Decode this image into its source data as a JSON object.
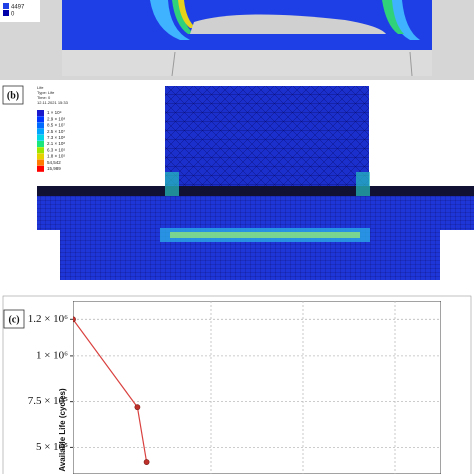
{
  "panel_a": {
    "legend_values": [
      "4497",
      "0"
    ]
  },
  "panel_b": {
    "label": "(b)",
    "legend_title": [
      "Life",
      "Type: Life",
      "Time: 0",
      "12.11.2021 15:33"
    ],
    "legend_values": [
      "1 × 10⁹",
      "2.9 × 10⁸",
      "8.5 × 10⁷",
      "2.5 × 10⁷",
      "7.3 × 10⁶",
      "2.1 × 10⁶",
      "6.3 × 10⁵",
      "1.8 × 10⁵",
      "54,542",
      "15,989"
    ]
  },
  "chart_data": {
    "type": "line",
    "label": "(c)",
    "y_label": "Available Life (cycles)",
    "x": [
      0,
      0.7,
      0.8
    ],
    "values": [
      1200000,
      720000,
      420000
    ],
    "color": "#d9413f",
    "marker_color": "#c0302b",
    "xlim": [
      0,
      4
    ],
    "xticks": [
      1.5,
      2.5,
      3.5
    ],
    "ylim": [
      0,
      1300000
    ],
    "yticks": [
      {
        "value": 1200000,
        "label": "1.2 × 10⁶"
      },
      {
        "value": 1000000,
        "label": "1 × 10⁶"
      },
      {
        "value": 750000,
        "label": "7.5 × 10⁵"
      },
      {
        "value": 500000,
        "label": "5 × 10⁵"
      }
    ],
    "grid": true
  }
}
